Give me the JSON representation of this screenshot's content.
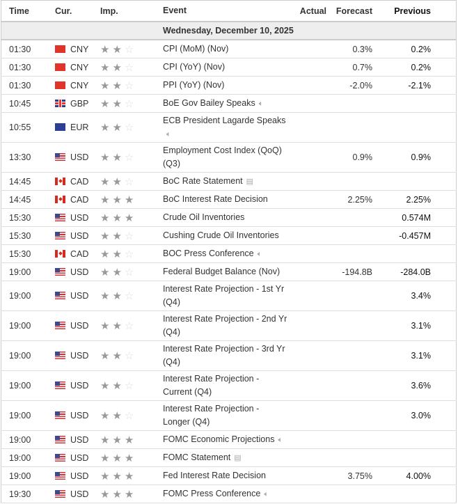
{
  "headers": {
    "time": "Time",
    "cur": "Cur.",
    "imp": "Imp.",
    "event": "Event",
    "actual": "Actual",
    "forecast": "Forecast",
    "previous": "Previous"
  },
  "date": "Wednesday, December 10, 2025",
  "rows": [
    {
      "time": "01:30",
      "cur": "CNY",
      "stars": 2,
      "event": "CPI (MoM) (Nov)",
      "actual": "",
      "forecast": "0.3%",
      "previous": "0.2%"
    },
    {
      "time": "01:30",
      "cur": "CNY",
      "stars": 2,
      "event": "CPI (YoY) (Nov)",
      "actual": "",
      "forecast": "0.7%",
      "previous": "0.2%"
    },
    {
      "time": "01:30",
      "cur": "CNY",
      "stars": 2,
      "event": "PPI (YoY) (Nov)",
      "actual": "",
      "forecast": "-2.0%",
      "previous": "-2.1%"
    },
    {
      "time": "10:45",
      "cur": "GBP",
      "stars": 2,
      "event": "BoE Gov Bailey Speaks",
      "icon": "speaker-icon",
      "actual": "",
      "forecast": "",
      "previous": ""
    },
    {
      "time": "10:55",
      "cur": "EUR",
      "stars": 2,
      "event": "ECB President Lagarde Speaks",
      "icon": "speaker-icon",
      "two": true,
      "actual": "",
      "forecast": "",
      "previous": ""
    },
    {
      "time": "13:30",
      "cur": "USD",
      "stars": 2,
      "event": "Employment Cost Index (QoQ) (Q3)",
      "two": true,
      "actual": "",
      "forecast": "0.9%",
      "previous": "0.9%"
    },
    {
      "time": "14:45",
      "cur": "CAD",
      "stars": 2,
      "event": "BoC Rate Statement",
      "icon": "document-icon",
      "actual": "",
      "forecast": "",
      "previous": ""
    },
    {
      "time": "14:45",
      "cur": "CAD",
      "stars": 3,
      "event": "BoC Interest Rate Decision",
      "actual": "",
      "forecast": "2.25%",
      "previous": "2.25%"
    },
    {
      "time": "15:30",
      "cur": "USD",
      "stars": 3,
      "event": "Crude Oil Inventories",
      "actual": "",
      "forecast": "",
      "previous": "0.574M"
    },
    {
      "time": "15:30",
      "cur": "USD",
      "stars": 2,
      "event": "Cushing Crude Oil Inventories",
      "actual": "",
      "forecast": "",
      "previous": "-0.457M"
    },
    {
      "time": "15:30",
      "cur": "CAD",
      "stars": 2,
      "event": "BOC Press Conference",
      "icon": "speaker-icon",
      "actual": "",
      "forecast": "",
      "previous": ""
    },
    {
      "time": "19:00",
      "cur": "USD",
      "stars": 2,
      "event": "Federal Budget Balance (Nov)",
      "actual": "",
      "forecast": "-194.8B",
      "previous": "-284.0B"
    },
    {
      "time": "19:00",
      "cur": "USD",
      "stars": 2,
      "event": "Interest Rate Projection - 1st Yr (Q4)",
      "two": true,
      "actual": "",
      "forecast": "",
      "previous": "3.4%"
    },
    {
      "time": "19:00",
      "cur": "USD",
      "stars": 2,
      "event": "Interest Rate Projection - 2nd Yr (Q4)",
      "two": true,
      "actual": "",
      "forecast": "",
      "previous": "3.1%"
    },
    {
      "time": "19:00",
      "cur": "USD",
      "stars": 2,
      "event": "Interest Rate Projection - 3rd Yr (Q4)",
      "two": true,
      "actual": "",
      "forecast": "",
      "previous": "3.1%"
    },
    {
      "time": "19:00",
      "cur": "USD",
      "stars": 2,
      "event": "Interest Rate Projection - Current (Q4)",
      "two": true,
      "actual": "",
      "forecast": "",
      "previous": "3.6%"
    },
    {
      "time": "19:00",
      "cur": "USD",
      "stars": 2,
      "event": "Interest Rate Projection - Longer (Q4)",
      "two": true,
      "actual": "",
      "forecast": "",
      "previous": "3.0%"
    },
    {
      "time": "19:00",
      "cur": "USD",
      "stars": 3,
      "event": "FOMC Economic Projections",
      "icon": "speaker-icon",
      "actual": "",
      "forecast": "",
      "previous": ""
    },
    {
      "time": "19:00",
      "cur": "USD",
      "stars": 3,
      "event": "FOMC Statement",
      "icon": "document-icon",
      "actual": "",
      "forecast": "",
      "previous": ""
    },
    {
      "time": "19:00",
      "cur": "USD",
      "stars": 3,
      "event": "Fed Interest Rate Decision",
      "actual": "",
      "forecast": "3.75%",
      "previous": "4.00%"
    },
    {
      "time": "19:30",
      "cur": "USD",
      "stars": 3,
      "event": "FOMC Press Conference",
      "icon": "speaker-icon",
      "actual": "",
      "forecast": "",
      "previous": ""
    }
  ]
}
